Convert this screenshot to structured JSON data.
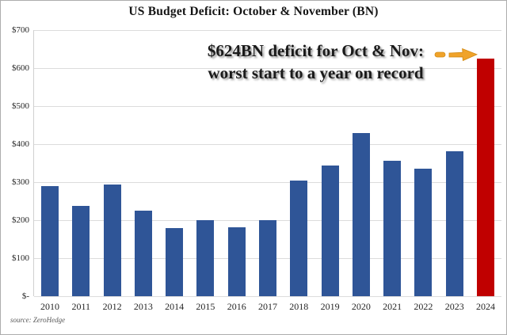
{
  "header": {
    "title": "US Budget Deficit: October & November (BN)"
  },
  "annotation": {
    "line1": "$624BN deficit for Oct & Nov:",
    "line2": "worst start to a year on record"
  },
  "source": "source: ZeroHedge",
  "chart_data": {
    "type": "bar",
    "title": "US Budget Deficit: October & November (BN)",
    "categories": [
      "2010",
      "2011",
      "2012",
      "2013",
      "2014",
      "2015",
      "2016",
      "2017",
      "2018",
      "2019",
      "2020",
      "2021",
      "2022",
      "2023",
      "2024"
    ],
    "values": [
      290,
      237,
      293,
      224,
      179,
      200,
      181,
      201,
      304,
      343,
      429,
      357,
      336,
      381,
      624
    ],
    "xlabel": "",
    "ylabel": "",
    "ylim": [
      0,
      700
    ],
    "y_tick_step": 100,
    "y_tick_labels": [
      "$700",
      "$600",
      "$500",
      "$400",
      "$300",
      "$200",
      "$100",
      "$-"
    ],
    "grid": true,
    "legend": "none",
    "bar_color": "#2F5597",
    "highlight_index": 14,
    "highlight_color": "#C00000",
    "highlight_label": "2024",
    "annotation_text": "$624BN deficit for Oct & Nov: worst start to a year on record",
    "arrow_color": "#F0A32A",
    "arrow_outline_color": "#D28A14",
    "gridline_color": "#dcdcdc"
  }
}
